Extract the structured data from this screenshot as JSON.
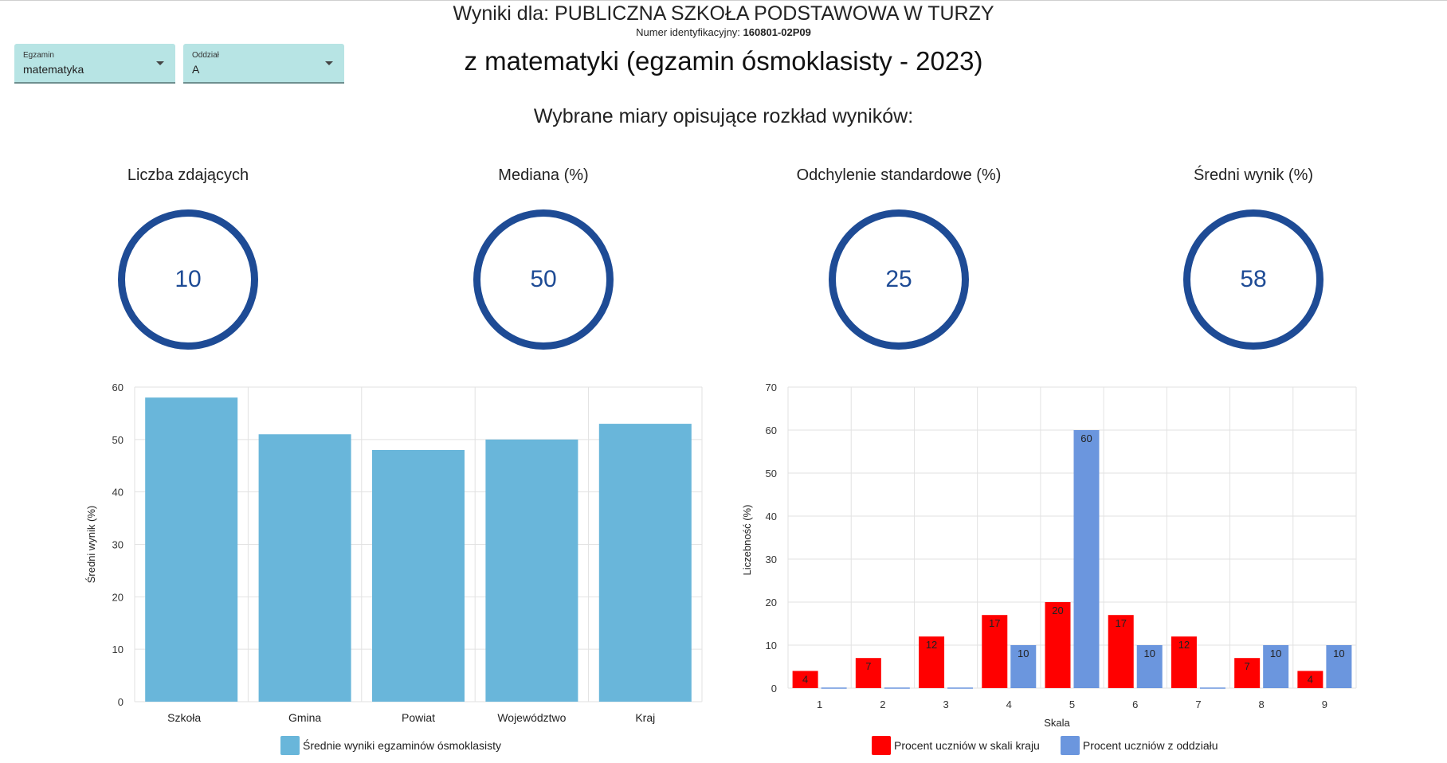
{
  "header": {
    "school_title": "Wyniki dla: PUBLICZNA SZKOŁA PODSTAWOWA W TURZY",
    "id_label": "Numer identyfikacyjny:",
    "id_value": "160801-02P09",
    "exam_title": "z matematyki (egzamin ósmoklasisty - 2023)",
    "measures_title": "Wybrane miary opisujące rozkład wyników:"
  },
  "filters": {
    "exam": {
      "label": "Egzamin",
      "value": "matematyka",
      "icon": "dropdown-arrow-icon"
    },
    "class": {
      "label": "Oddział",
      "value": "A",
      "icon": "dropdown-arrow-icon"
    }
  },
  "stats": [
    {
      "label": "Liczba zdających",
      "value": "10"
    },
    {
      "label": "Mediana (%)",
      "value": "50"
    },
    {
      "label": "Odchylenie standardowe (%)",
      "value": "25"
    },
    {
      "label": "Średni wynik (%)",
      "value": "58"
    }
  ],
  "colors": {
    "ring": "#1e4b95",
    "bar_avg": "#69b6da",
    "bar_country": "#ff0000",
    "bar_class": "#6b96de",
    "dropdown": "#b7e4e4"
  },
  "chart_data": [
    {
      "type": "bar",
      "categories": [
        "Szkoła",
        "Gmina",
        "Powiat",
        "Województwo",
        "Kraj"
      ],
      "series": [
        {
          "name": "Średnie wyniki egzaminów ósmoklasisty",
          "values": [
            58,
            51,
            48,
            50,
            53
          ]
        }
      ],
      "xlabel": "",
      "ylabel": "Średni wynik (%)",
      "ylim": [
        0,
        60
      ],
      "yticks": [
        0,
        10,
        20,
        30,
        40,
        50,
        60
      ],
      "grid": true,
      "legend": "bottom"
    },
    {
      "type": "bar",
      "categories": [
        "1",
        "2",
        "3",
        "4",
        "5",
        "6",
        "7",
        "8",
        "9"
      ],
      "series": [
        {
          "name": "Procent uczniów w skali kraju",
          "values": [
            4,
            7,
            12,
            17,
            20,
            17,
            12,
            7,
            4
          ]
        },
        {
          "name": "Procent uczniów z oddziału",
          "values": [
            0,
            0,
            0,
            10,
            60,
            10,
            0,
            10,
            10
          ]
        }
      ],
      "xlabel": "Skala",
      "ylabel": "Liczebność (%)",
      "ylim": [
        0,
        70
      ],
      "yticks": [
        0,
        10,
        20,
        30,
        40,
        50,
        60,
        70
      ],
      "grid": true,
      "legend": "bottom"
    }
  ]
}
